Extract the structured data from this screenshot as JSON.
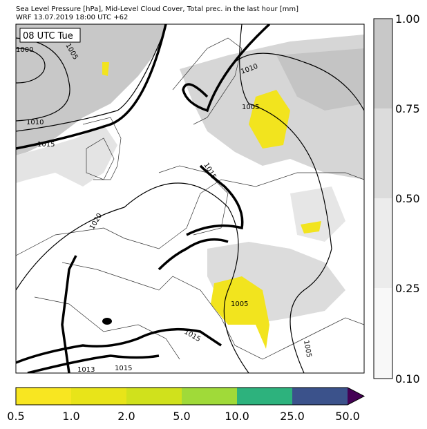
{
  "header": {
    "line1": "Sea Level Pressure [hPa], Mid-Level Cloud Cover, Total prec. in the last hour [mm]",
    "line2": "WRF 13.07.2019 18:00 UTC +62"
  },
  "map": {
    "time_label": "08 UTC Tue",
    "isobar_labels": [
      "1000",
      "1005",
      "1010",
      "1015",
      "1010",
      "1005",
      "1015",
      "1020",
      "1005",
      "1015",
      "1015",
      "1013",
      "1005"
    ]
  },
  "cloud_colorbar": {
    "ticks": [
      "1.00",
      "0.75",
      "0.50",
      "0.25",
      "0.10"
    ]
  },
  "precip_colorbar": {
    "ticks": [
      "0.5",
      "1.0",
      "2.0",
      "5.0",
      "10.0",
      "25.0",
      "50.0"
    ]
  }
}
